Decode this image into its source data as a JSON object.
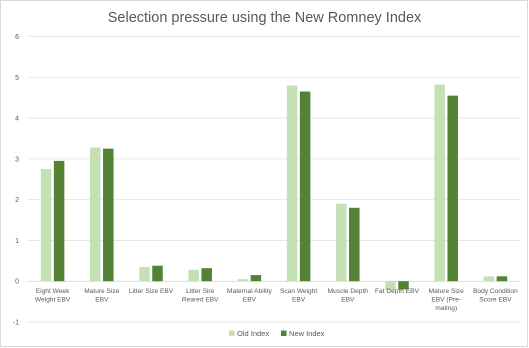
{
  "chart_data": {
    "type": "bar",
    "title": "Selection pressure using the New Romney Index",
    "xlabel": "",
    "ylabel": "",
    "ylim": [
      -1,
      6
    ],
    "yticks": [
      -1,
      0,
      1,
      2,
      3,
      4,
      5,
      6
    ],
    "grid": true,
    "legend_position": "bottom",
    "categories": [
      [
        "Eight Week",
        "Weight EBV"
      ],
      [
        "Mature Size",
        "EBV"
      ],
      [
        "Litter Size EBV"
      ],
      [
        "Litter Sire",
        "Reared EBV"
      ],
      [
        "Maternal Ability",
        "EBV"
      ],
      [
        "Scan Weight",
        "EBV"
      ],
      [
        "Muscle Depth",
        "EBV"
      ],
      [
        "Fat Depth EBV"
      ],
      [
        "Mature Size",
        "EBV (Pre-",
        "mating)"
      ],
      [
        "Body Condition",
        "Score EBV"
      ]
    ],
    "series": [
      {
        "name": "Old Index",
        "color": "#c5e0b4",
        "values": [
          2.75,
          3.28,
          0.35,
          0.28,
          0.05,
          4.8,
          1.9,
          -0.22,
          4.82,
          0.12
        ]
      },
      {
        "name": "New Index",
        "color": "#548235",
        "values": [
          2.95,
          3.25,
          0.38,
          0.32,
          0.15,
          4.65,
          1.8,
          -0.2,
          4.55,
          0.12
        ]
      }
    ]
  }
}
